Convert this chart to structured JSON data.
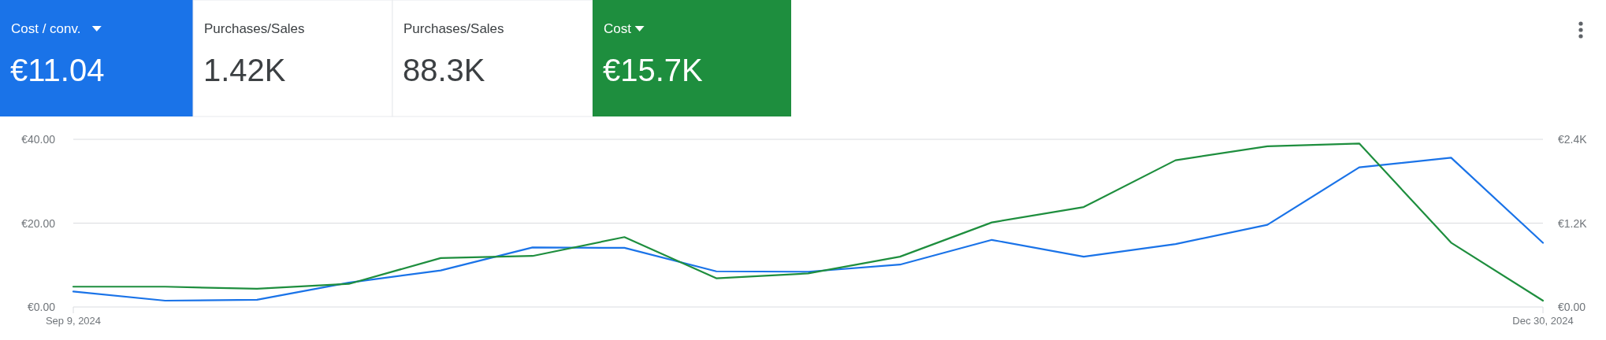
{
  "chart_data": [
    {
      "type": "other",
      "title": "Cost / conv.",
      "subtitle": "€11.04",
      "color": "#1a73e8"
    },
    {
      "type": "other",
      "title": "Purchases/Sales",
      "subtitle": "1.42K"
    },
    {
      "type": "other",
      "title": "Purchases/Sales",
      "subtitle": "88.3K"
    },
    {
      "type": "other",
      "title": "Cost",
      "subtitle": "€15.7K",
      "color": "#1e8e3e"
    },
    {
      "type": "line",
      "x": [
        "2024-09-09",
        "2024-09-16",
        "2024-09-23",
        "2024-09-30",
        "2024-10-07",
        "2024-10-14",
        "2024-10-21",
        "2024-10-28",
        "2024-11-04",
        "2024-11-11",
        "2024-11-18",
        "2024-11-25",
        "2024-12-02",
        "2024-12-09",
        "2024-12-16",
        "2024-12-23",
        "2024-12-30"
      ],
      "series": [
        {
          "color": "#1a73e8",
          "values": [
            3.7,
            1.5,
            1.7,
            5.8,
            8.7,
            14.2,
            14.1,
            8.5,
            8.4,
            10.1,
            16.0,
            12.0,
            15.0,
            19.6,
            33.3,
            35.6,
            15.3
          ]
        },
        {
          "color": "#1e8e3e",
          "axis": "y2",
          "values": [
            290,
            290,
            260,
            330,
            700,
            730,
            1000,
            410,
            480,
            720,
            1210,
            1430,
            2100,
            2300,
            2340,
            920,
            90
          ]
        }
      ],
      "xlim": [
        "2024-09-09",
        "2024-12-30"
      ],
      "xticks": [
        {
          "value": "2024-09-09",
          "label": "Sep 9, 2024"
        },
        {
          "value": "2024-12-30",
          "label": "Dec 30, 2024"
        }
      ],
      "ylim": [
        0,
        40
      ],
      "yticks": [
        {
          "value": 0,
          "label": "€0.00"
        },
        {
          "value": 20,
          "label": "€20.00"
        },
        {
          "value": 40,
          "label": "€40.00"
        }
      ],
      "y2lim": [
        0,
        2400
      ],
      "y2ticks": [
        {
          "value": 0,
          "label": "€0.00"
        },
        {
          "value": 1200,
          "label": "€1.2K"
        },
        {
          "value": 2400,
          "label": "€2.4K"
        }
      ],
      "grid": "y",
      "marker": "none",
      "line_style": "solid"
    }
  ]
}
